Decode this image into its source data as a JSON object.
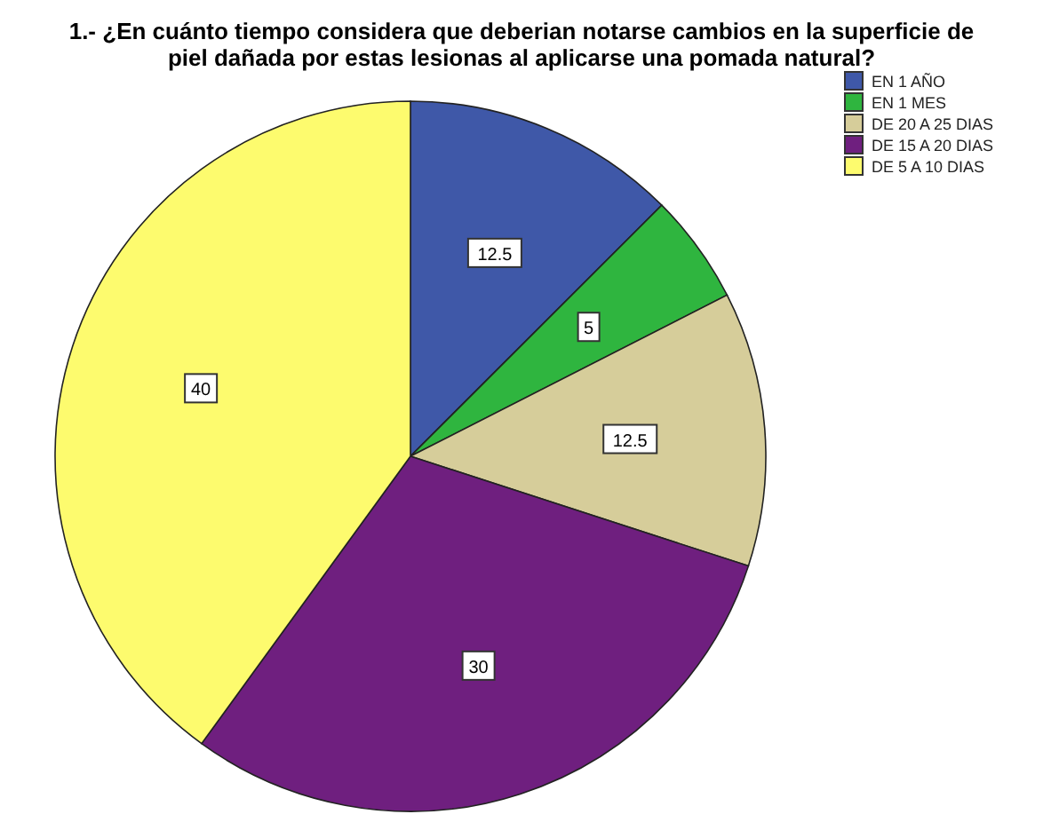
{
  "chart_data": {
    "type": "pie",
    "title": "1.- ¿En cuánto tiempo considera que deberian notarse cambios en la superficie de piel dañada por estas lesionas al aplicarse una pomada natural?",
    "categories": [
      "EN 1 AÑO",
      "EN 1 MES",
      "DE 20 A 25 DIAS",
      "DE 15 A 20 DIAS",
      "DE 5 A 10 DIAS"
    ],
    "values": [
      12.5,
      5,
      12.5,
      30,
      40
    ],
    "colors": [
      "#3f58a8",
      "#2fb53f",
      "#d6cd9a",
      "#6f1f7f",
      "#fdfb6e"
    ],
    "data_labels": true,
    "legend": "top right"
  }
}
